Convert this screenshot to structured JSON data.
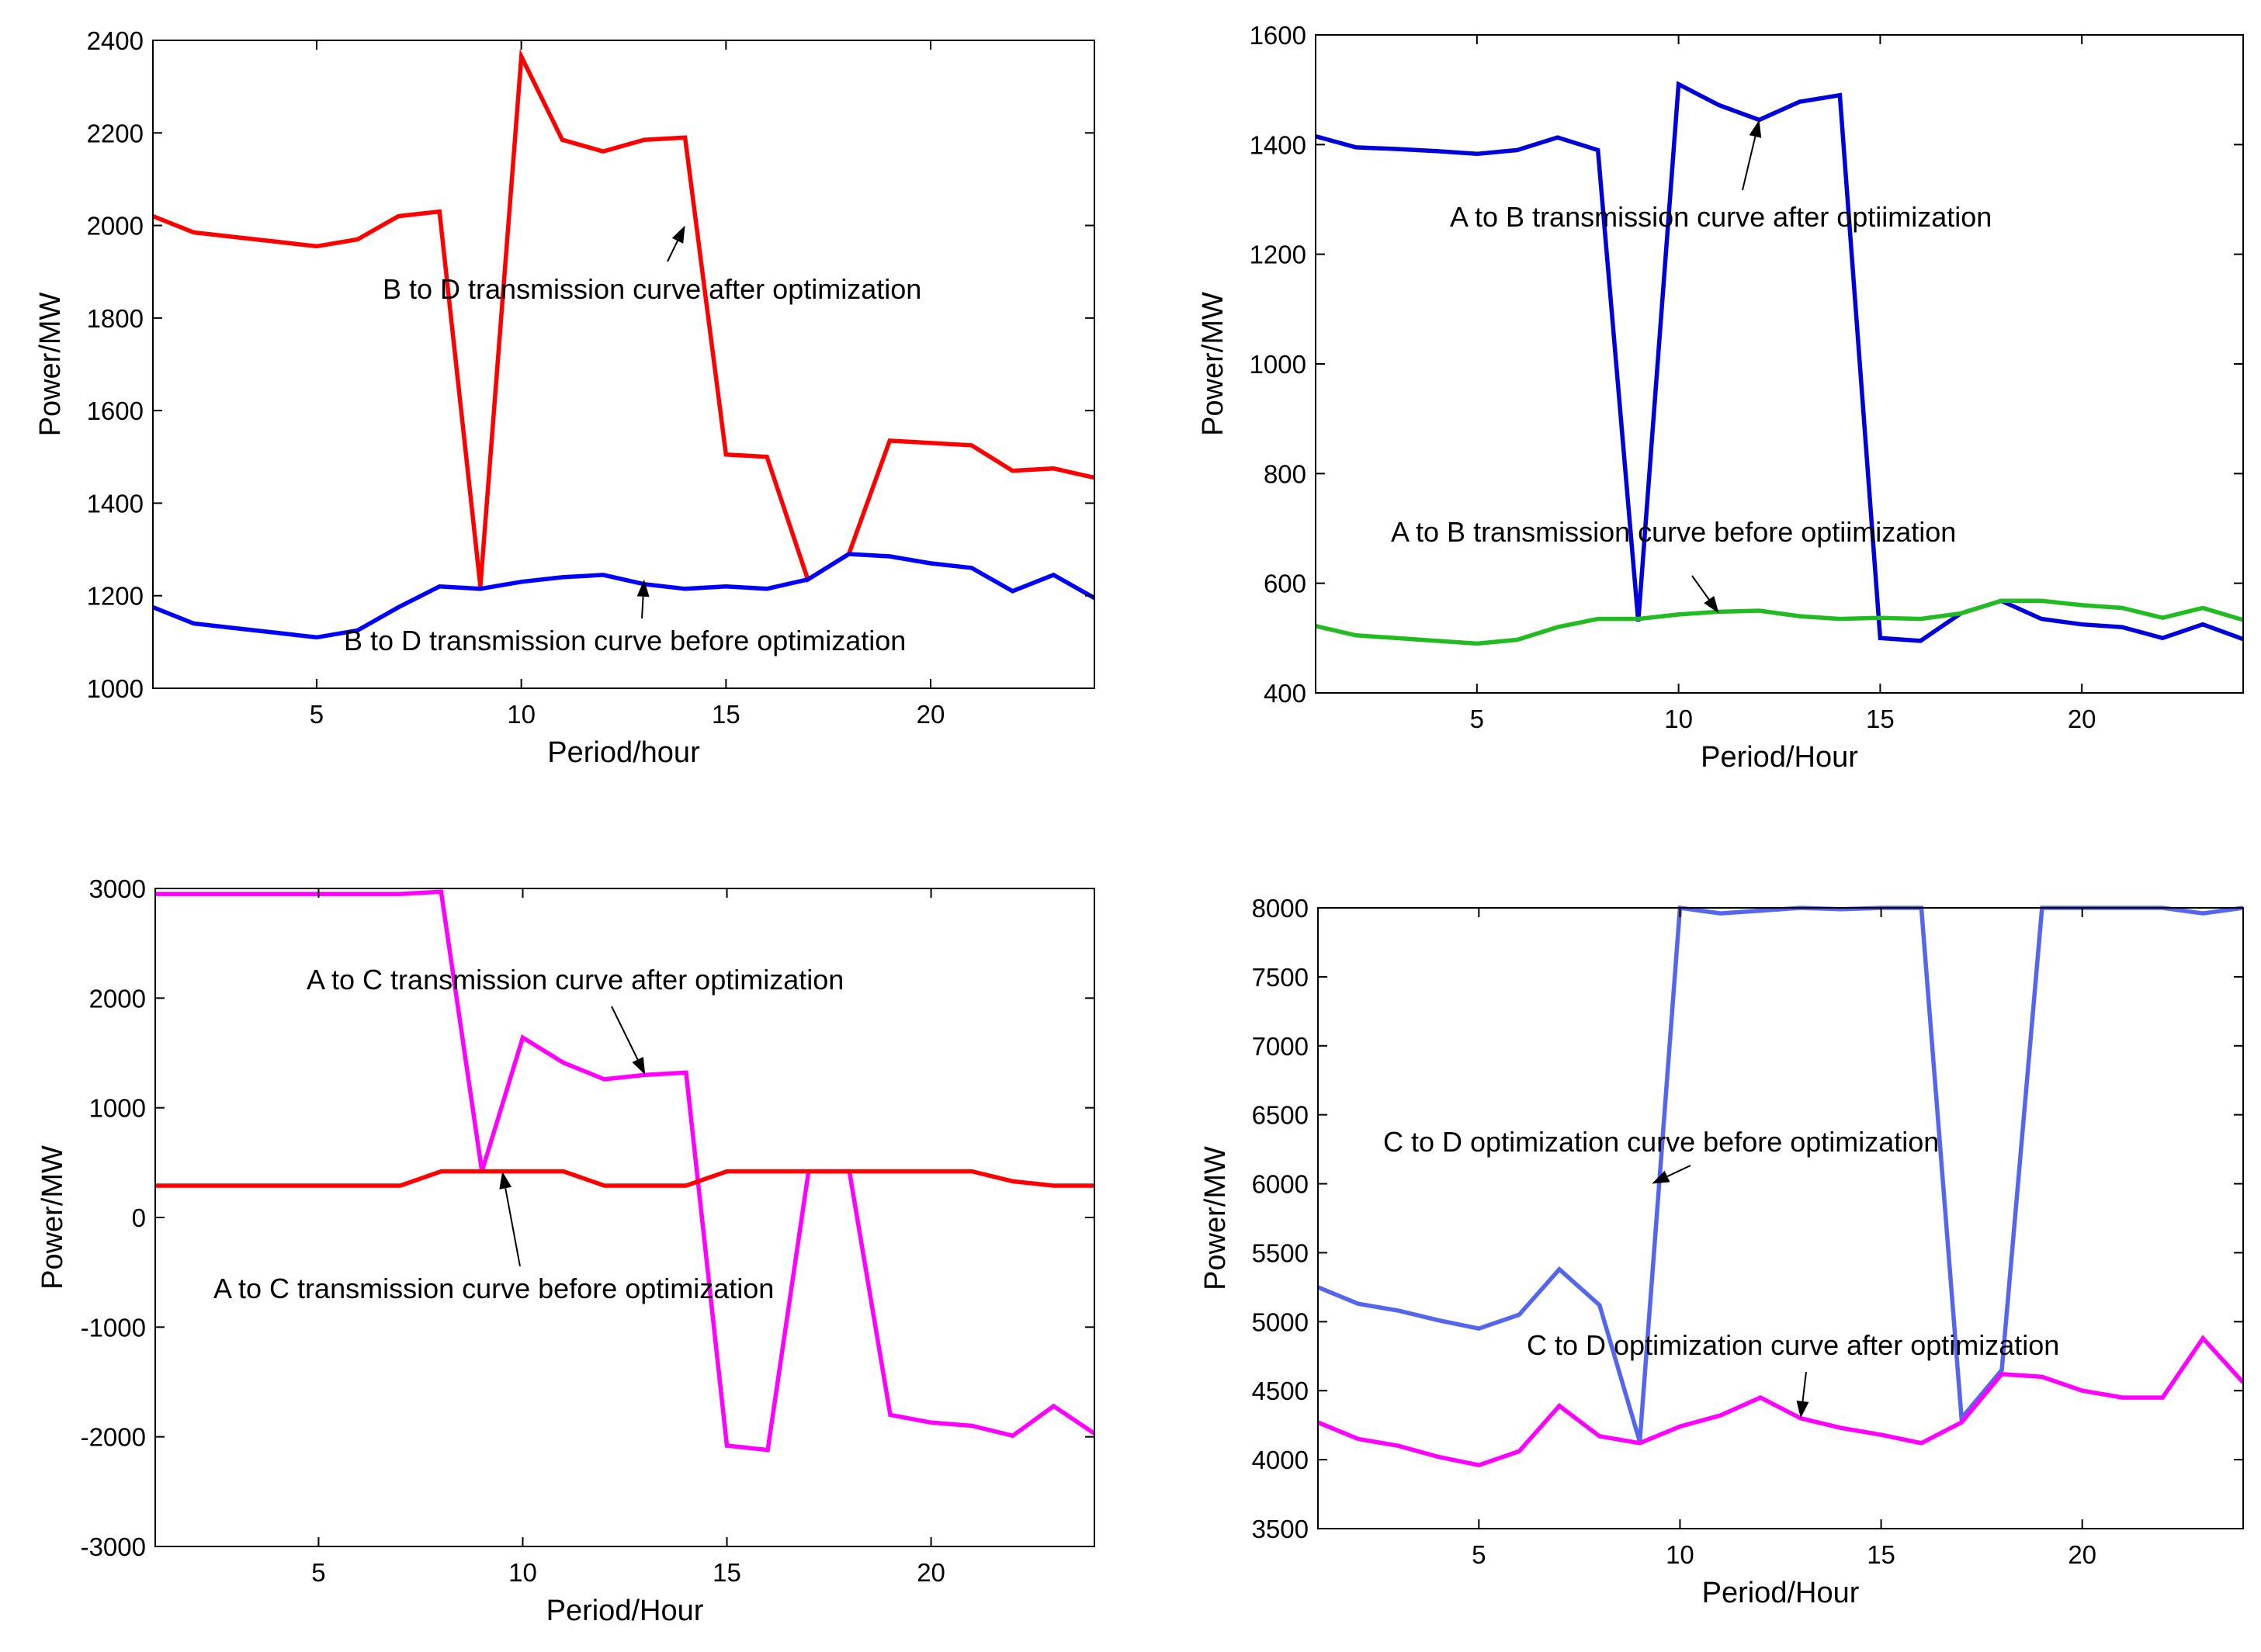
{
  "chart_data": [
    {
      "type": "line",
      "xlabel": "Period/hour",
      "ylabel": "Power/MW",
      "xlim": [
        1,
        24
      ],
      "ylim": [
        1000,
        2400
      ],
      "xticks": [
        5,
        10,
        15,
        20
      ],
      "yticks": [
        1000,
        1200,
        1400,
        1600,
        1800,
        2000,
        2200,
        2400
      ],
      "x": [
        1,
        2,
        3,
        4,
        5,
        6,
        7,
        8,
        9,
        10,
        11,
        12,
        13,
        14,
        15,
        16,
        17,
        18,
        19,
        20,
        21,
        22,
        23,
        24
      ],
      "series": [
        {
          "name": "B to D transmission curve after optimization",
          "color": "#ff0000",
          "values": [
            2020,
            1985,
            1975,
            1965,
            1955,
            1970,
            2020,
            2030,
            1220,
            2365,
            2185,
            2160,
            2185,
            2190,
            1505,
            1500,
            1235,
            1290,
            1535,
            1530,
            1525,
            1470,
            1475,
            1455
          ]
        },
        {
          "name": "B to D transmission curve before optimization",
          "color": "#0000ff",
          "values": [
            1175,
            1140,
            1130,
            1120,
            1110,
            1125,
            1175,
            1220,
            1215,
            1230,
            1240,
            1245,
            1225,
            1215,
            1220,
            1215,
            1235,
            1290,
            1285,
            1270,
            1260,
            1210,
            1245,
            1195
          ]
        }
      ],
      "annotations": [
        {
          "text": "B to D transmission curve after optimization",
          "target": [
            14,
            2000
          ]
        },
        {
          "text": "B to D transmission curve before optimization",
          "target": [
            13,
            1235
          ]
        }
      ]
    },
    {
      "type": "line",
      "xlabel": "Period/Hour",
      "ylabel": "Power/MW",
      "xlim": [
        1,
        24
      ],
      "ylim": [
        400,
        1600
      ],
      "xticks": [
        5,
        10,
        15,
        20
      ],
      "yticks": [
        400,
        600,
        800,
        1000,
        1200,
        1400,
        1600
      ],
      "x": [
        1,
        2,
        3,
        4,
        5,
        6,
        7,
        8,
        9,
        10,
        11,
        12,
        13,
        14,
        15,
        16,
        17,
        18,
        19,
        20,
        21,
        22,
        23,
        24
      ],
      "series": [
        {
          "name": "A to B transmission curve after optiimization",
          "color": "#0000dd",
          "values": [
            1415,
            1395,
            1392,
            1388,
            1383,
            1390,
            1413,
            1390,
            530,
            1510,
            1472,
            1445,
            1478,
            1490,
            500,
            495,
            545,
            568,
            535,
            525,
            520,
            500,
            525,
            498
          ]
        },
        {
          "name": "A to B transmission curve before optiimization",
          "color": "#22bb22",
          "values": [
            522,
            505,
            500,
            495,
            490,
            497,
            520,
            535,
            535,
            543,
            548,
            550,
            540,
            535,
            537,
            535,
            545,
            568,
            568,
            560,
            555,
            537,
            555,
            533
          ]
        }
      ],
      "annotations": [
        {
          "text": "A to B transmission curve after optiimization",
          "target": [
            12,
            1445
          ]
        },
        {
          "text": "A to B transmission curve before optiimization",
          "target": [
            11,
            545
          ]
        }
      ]
    },
    {
      "type": "line",
      "xlabel": "Period/Hour",
      "ylabel": "Power/MW",
      "xlim": [
        1,
        24
      ],
      "ylim": [
        -3000,
        3000
      ],
      "xticks": [
        5,
        10,
        15,
        20
      ],
      "yticks": [
        -3000,
        -2000,
        -1000,
        0,
        1000,
        2000,
        3000
      ],
      "x": [
        1,
        2,
        3,
        4,
        5,
        6,
        7,
        8,
        9,
        10,
        11,
        12,
        13,
        14,
        15,
        16,
        17,
        18,
        19,
        20,
        21,
        22,
        23,
        24
      ],
      "series": [
        {
          "name": "A to C transmission curve after optimization",
          "color": "#ff00ff",
          "values": [
            2950,
            2950,
            2950,
            2950,
            2950,
            2950,
            2950,
            2970,
            420,
            1640,
            1410,
            1260,
            1300,
            1320,
            -2080,
            -2120,
            420,
            420,
            -1800,
            -1870,
            -1900,
            -1990,
            -1720,
            -1970
          ]
        },
        {
          "name": "A to C transmission curve before optimization",
          "color": "#ff0000",
          "values": [
            290,
            290,
            290,
            290,
            290,
            290,
            290,
            420,
            420,
            420,
            420,
            290,
            290,
            290,
            420,
            420,
            420,
            420,
            420,
            420,
            420,
            330,
            290,
            290
          ]
        }
      ],
      "annotations": [
        {
          "text": "A to C transmission curve after optimization",
          "target": [
            13,
            1300
          ]
        },
        {
          "text": "A to C transmission curve before optimization",
          "target": [
            9.5,
            420
          ]
        }
      ]
    },
    {
      "type": "line",
      "xlabel": "Period/Hour",
      "ylabel": "Power/MW",
      "xlim": [
        1,
        24
      ],
      "ylim": [
        3500,
        8000
      ],
      "xticks": [
        5,
        10,
        15,
        20
      ],
      "yticks": [
        3500,
        4000,
        4500,
        5000,
        5500,
        6000,
        6500,
        7000,
        7500,
        8000
      ],
      "x": [
        1,
        2,
        3,
        4,
        5,
        6,
        7,
        8,
        9,
        10,
        11,
        12,
        13,
        14,
        15,
        16,
        17,
        18,
        19,
        20,
        21,
        22,
        23,
        24
      ],
      "series": [
        {
          "name": "C to D optimization curve before optimization",
          "color": "#5566ee",
          "values": [
            5250,
            5130,
            5080,
            5010,
            4950,
            5050,
            5380,
            5120,
            4130,
            8000,
            7960,
            7980,
            8000,
            7990,
            8000,
            8000,
            4300,
            4650,
            8000,
            8000,
            8000,
            8000,
            7960,
            8000
          ]
        },
        {
          "name": "C to D optimization curve after optimization",
          "color": "#ff00ff",
          "values": [
            4270,
            4150,
            4100,
            4020,
            3960,
            4060,
            4390,
            4170,
            4120,
            4240,
            4320,
            4450,
            4300,
            4230,
            4180,
            4120,
            4270,
            4620,
            4600,
            4500,
            4450,
            4450,
            4880,
            4560
          ]
        }
      ],
      "annotations": [
        {
          "text": "C to D optimization curve before optimization",
          "target": [
            9.3,
            6000
          ]
        },
        {
          "text": "C to D optimization curve after optimization",
          "target": [
            13,
            4300
          ]
        }
      ]
    }
  ]
}
